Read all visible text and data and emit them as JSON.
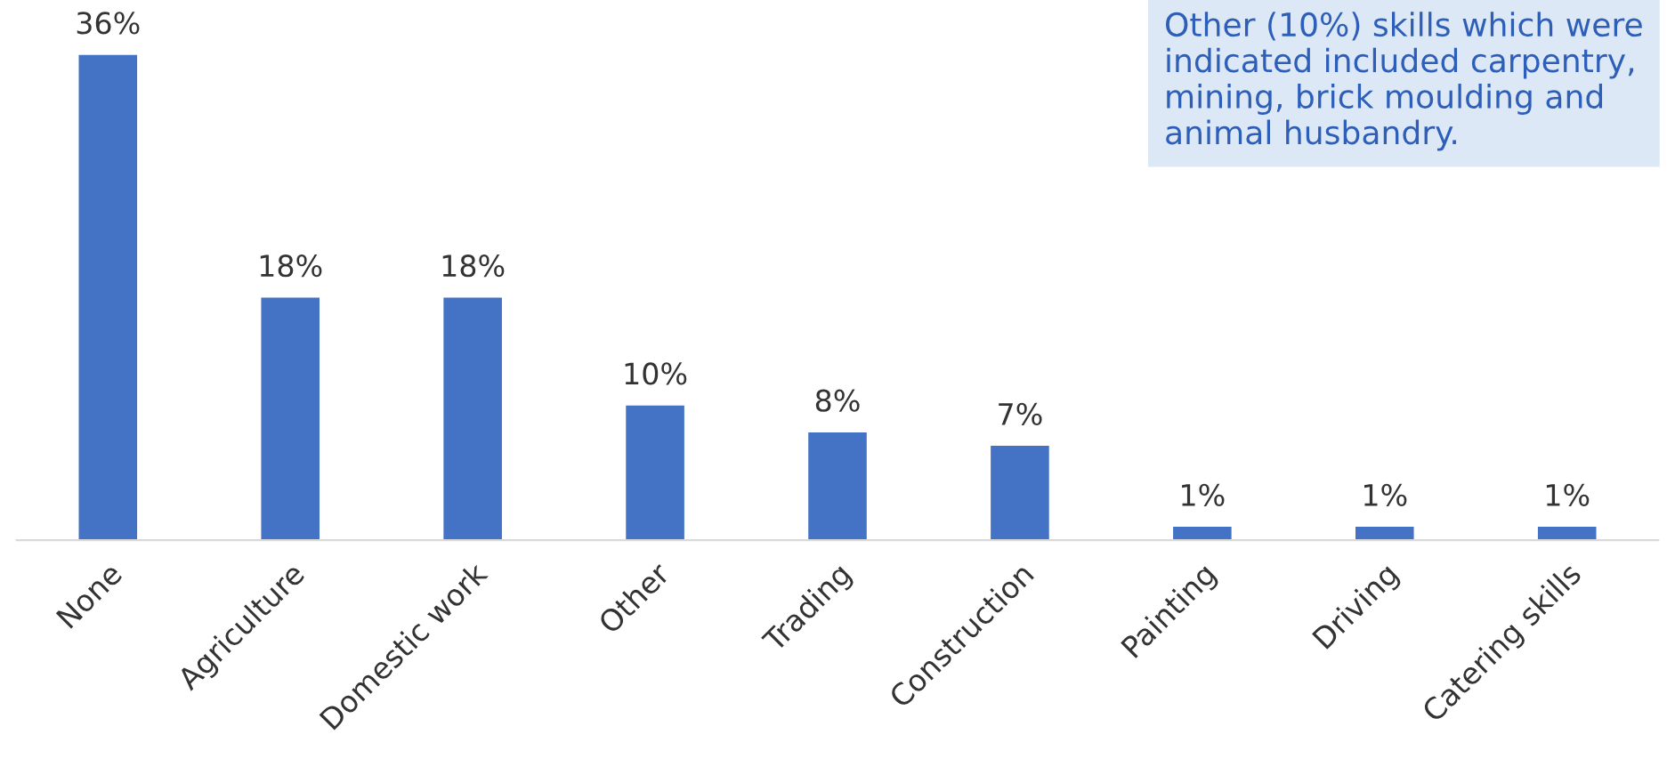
{
  "chart_data": {
    "type": "bar",
    "categories": [
      "None",
      "Agriculture",
      "Domestic work",
      "Other",
      "Trading",
      "Construction",
      "Painting",
      "Driving",
      "Catering skills"
    ],
    "values": [
      36,
      18,
      18,
      10,
      8,
      7,
      1,
      1,
      1
    ],
    "value_labels": [
      "36%",
      "18%",
      "18%",
      "10%",
      "8%",
      "7%",
      "1%",
      "1%",
      "1%"
    ],
    "color": "#4472c4",
    "annotations": [
      "Other (10%) skills which were indicated included carpentry, mining, brick moulding and animal husbandry."
    ]
  }
}
